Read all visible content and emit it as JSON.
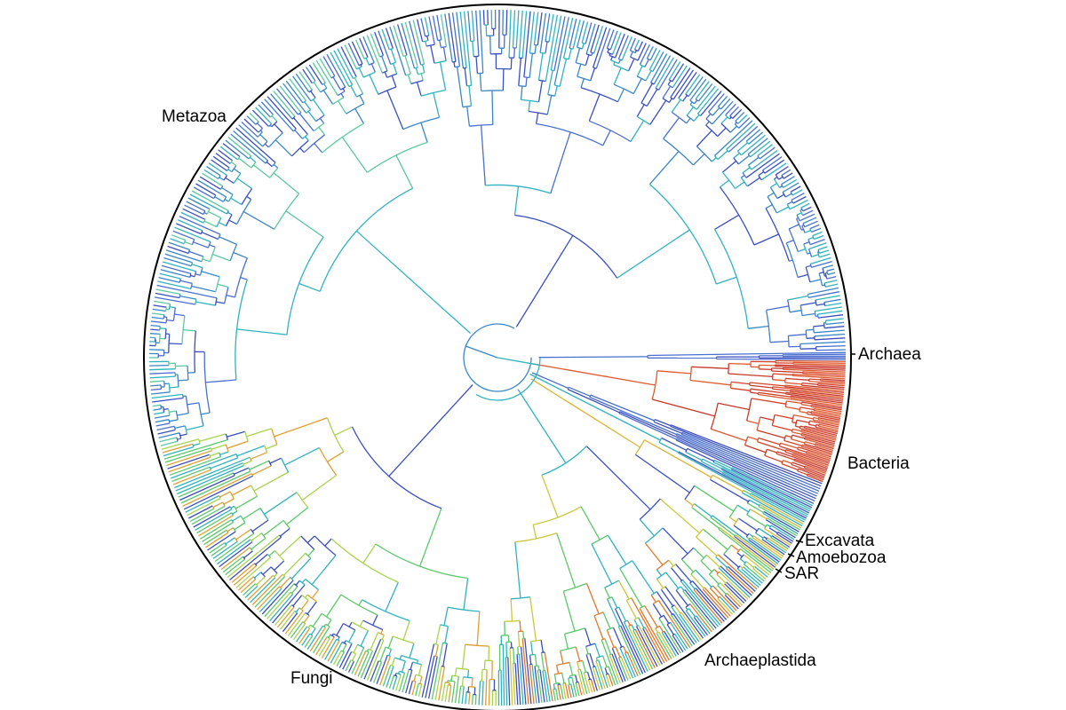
{
  "diagram": {
    "type": "circular-phylogenetic-tree",
    "clades": [
      {
        "key": "metazoa",
        "label": "Metazoa",
        "angle_start": 165,
        "angle_end": 261,
        "leaves": 160,
        "palette": [
          "#3b4fc0",
          "#4a6fd0",
          "#3a86c8",
          "#2fb3c0",
          "#5cc9a0"
        ]
      },
      {
        "key": "fungi",
        "label": "Fungi",
        "angle_start": 90,
        "angle_end": 165,
        "leaves": 150,
        "palette": [
          "#3b4fc0",
          "#2fb3c0",
          "#5ac96a",
          "#a8d44a",
          "#e0a030"
        ]
      },
      {
        "key": "archaeplastida",
        "label": "Archaeplastida",
        "angle_start": 38,
        "angle_end": 90,
        "leaves": 130,
        "palette": [
          "#2fb3c0",
          "#5ac96a",
          "#c9c83a",
          "#e07a2a",
          "#3b4fc0"
        ]
      },
      {
        "key": "sar",
        "label": "SAR",
        "angle_start": 28,
        "angle_end": 38,
        "leaves": 30,
        "palette": [
          "#3b4fc0",
          "#2fb3c0",
          "#5ac96a",
          "#d8b530"
        ]
      },
      {
        "key": "amoebozoa",
        "label": "Amoebozoa",
        "angle_start": 25,
        "angle_end": 28,
        "leaves": 10,
        "palette": [
          "#3b4fc0",
          "#2fb3c0"
        ]
      },
      {
        "key": "excavata",
        "label": "Excavata",
        "angle_start": 21,
        "angle_end": 25,
        "leaves": 10,
        "palette": [
          "#3b4fc0",
          "#4a6fd0"
        ]
      },
      {
        "key": "bacteria",
        "label": "Bacteria",
        "angle_start": 0.5,
        "angle_end": 21,
        "leaves": 80,
        "palette": [
          "#d6432a",
          "#e05a30",
          "#c8382a"
        ]
      },
      {
        "key": "archaea",
        "label": "Archaea",
        "angle_start": -1,
        "angle_end": 0.5,
        "leaves": 6,
        "palette": [
          "#3b4fc0",
          "#4a6fd0"
        ]
      },
      {
        "key": "other",
        "label": "",
        "angle_start": 261,
        "angle_end": 359,
        "leaves": 170,
        "palette": [
          "#3b4fc0",
          "#4a6fd0",
          "#3a86c8",
          "#2fb3c0"
        ]
      }
    ]
  }
}
